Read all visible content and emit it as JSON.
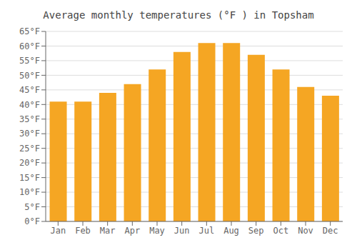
{
  "chart_data": {
    "type": "bar",
    "title": "Average monthly temperatures (°F ) in Topsham",
    "categories": [
      "Jan",
      "Feb",
      "Mar",
      "Apr",
      "May",
      "Jun",
      "Jul",
      "Aug",
      "Sep",
      "Oct",
      "Nov",
      "Dec"
    ],
    "values": [
      41,
      41,
      44,
      47,
      52,
      58,
      61,
      61,
      57,
      52,
      46,
      43
    ],
    "color": "#F5A623",
    "ylim": [
      0,
      65
    ],
    "yticks": [
      {
        "value": 0,
        "label": "0°F"
      },
      {
        "value": 5,
        "label": "5°F"
      },
      {
        "value": 10,
        "label": "10°F"
      },
      {
        "value": 15,
        "label": "15°F"
      },
      {
        "value": 20,
        "label": "20°F"
      },
      {
        "value": 25,
        "label": "25°F"
      },
      {
        "value": 30,
        "label": "30°F"
      },
      {
        "value": 35,
        "label": "35°F"
      },
      {
        "value": 40,
        "label": "40°F"
      },
      {
        "value": 45,
        "label": "45°F"
      },
      {
        "value": 50,
        "label": "50°F"
      },
      {
        "value": 55,
        "label": "55°F"
      },
      {
        "value": 60,
        "label": "60°F"
      },
      {
        "value": 65,
        "label": "65°F"
      }
    ],
    "grid": true
  }
}
